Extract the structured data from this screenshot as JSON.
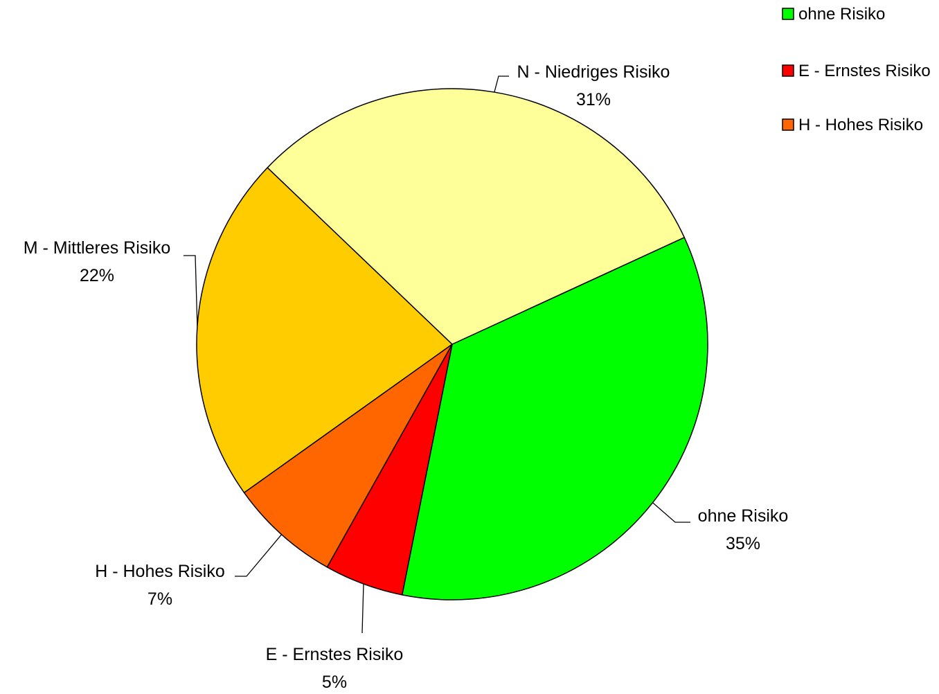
{
  "chart_data": {
    "type": "pie",
    "slices": [
      {
        "label": "ohne Risiko",
        "value": 35,
        "display": "35%",
        "color": "#00FF00"
      },
      {
        "label": "E - Ernstes Risiko",
        "value": 5,
        "display": "5%",
        "color": "#FF0000"
      },
      {
        "label": "H - Hohes Risiko",
        "value": 7,
        "display": "7%",
        "color": "#FF6600"
      },
      {
        "label": "M - Mittleres Risiko",
        "value": 22,
        "display": "22%",
        "color": "#FFCC00"
      },
      {
        "label": "N - Niedriges Risiko",
        "value": 31,
        "display": "31%",
        "color": "#FFFF99"
      }
    ],
    "legend": {
      "position": "top-right",
      "entries": [
        "ohne Risiko",
        "E - Ernstes Risiko",
        "H - Hohes Risiko"
      ]
    }
  }
}
